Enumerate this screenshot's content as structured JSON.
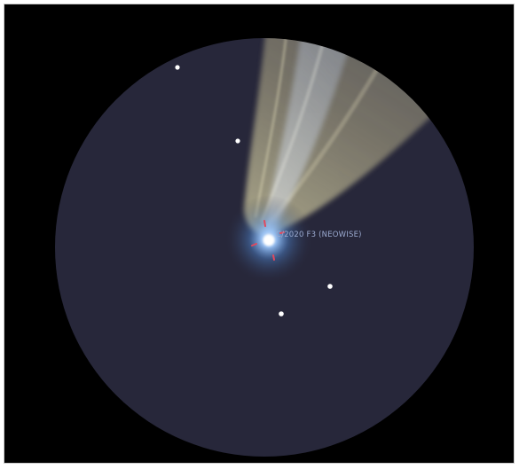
{
  "viewer": {
    "object_label": "C/2020 F3 (NEOWISE)"
  },
  "colors": {
    "background": "#000000",
    "field_of_view": "#27273a",
    "star": "#ffffff",
    "label": "#9aa9cf",
    "coma": "#7ab4ff",
    "nucleus": "#ffffff",
    "marker": "#e2495e",
    "dust_tail": "#d4cc9a",
    "ion_tail": "#c9d7f0"
  },
  "icons": {
    "star": "white-dot",
    "target": "red-tick-reticle"
  }
}
